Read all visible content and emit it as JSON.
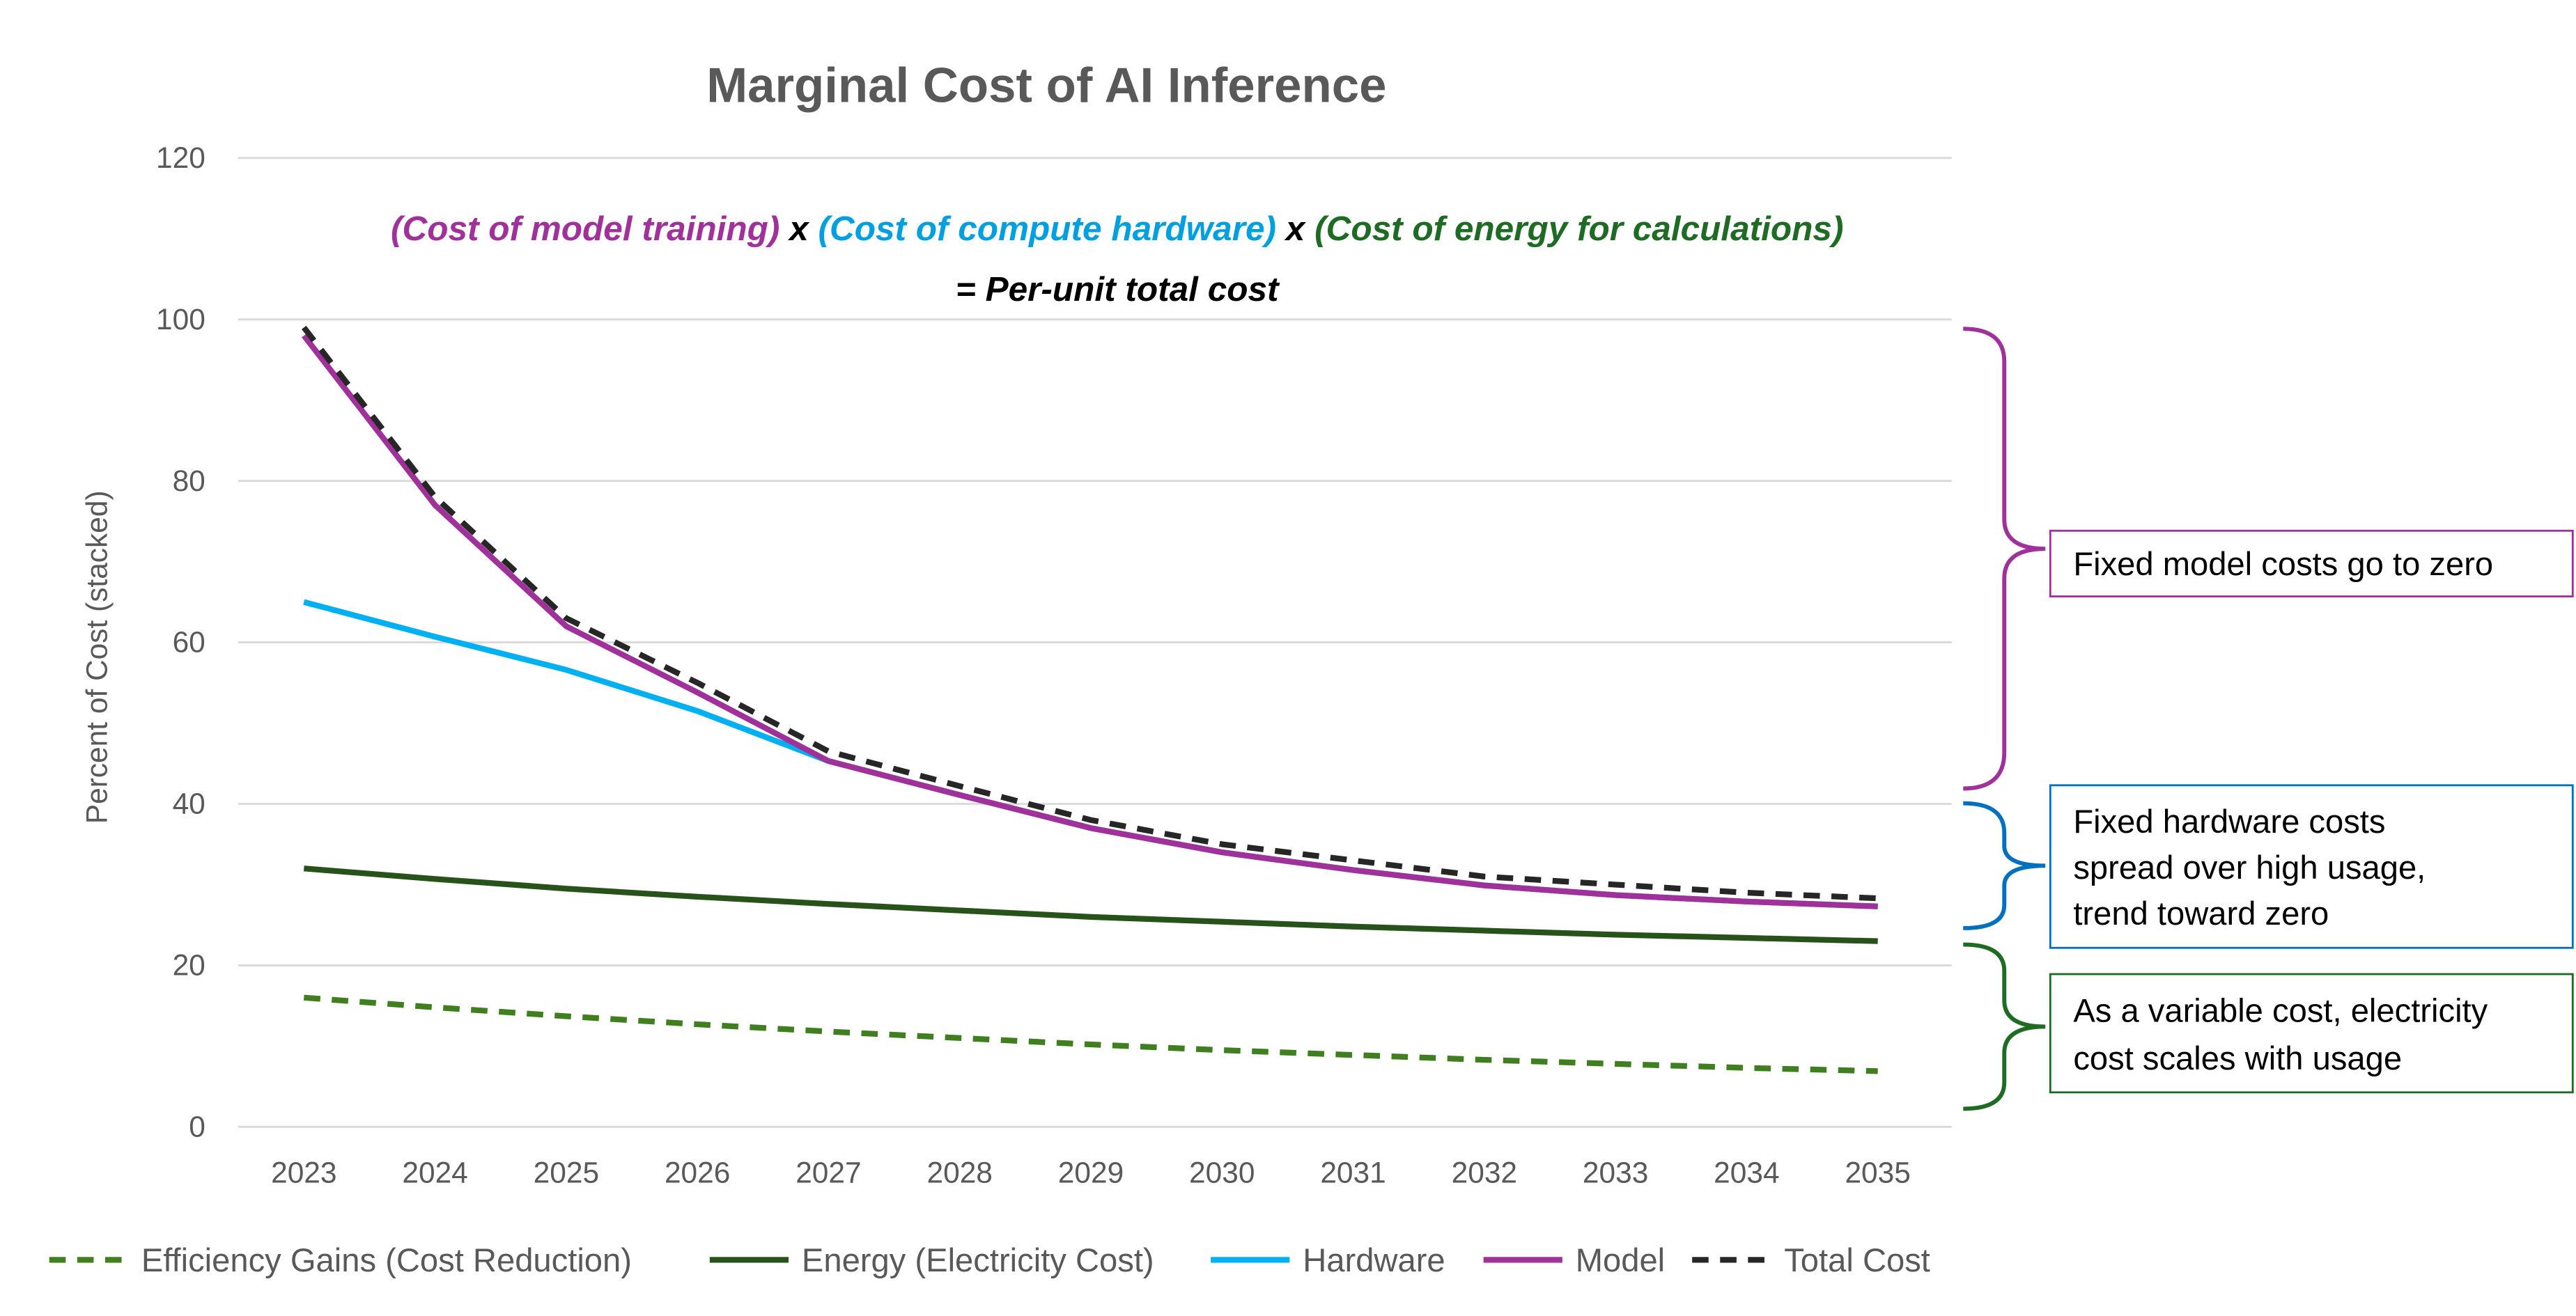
{
  "chart_data": {
    "type": "line",
    "title": "Marginal Cost of AI Inference",
    "ylabel": "Percent of Cost   (stacked)",
    "xlabel": "",
    "ylim": [
      0,
      120
    ],
    "yticks": [
      "0",
      "20",
      "40",
      "60",
      "80",
      "100",
      "120"
    ],
    "grid": true,
    "legend_position": "bottom",
    "categories": [
      "2023",
      "2024",
      "2025",
      "2026",
      "2027",
      "2028",
      "2029",
      "2030",
      "2031",
      "2032",
      "2033",
      "2034",
      "2035"
    ],
    "series": [
      {
        "name": "Efficiency Gains (Cost Reduction)",
        "color": "#3f7f1f",
        "dash": "dashed",
        "values": [
          16,
          14.8,
          13.7,
          12.7,
          11.8,
          11,
          10.2,
          9.5,
          8.9,
          8.3,
          7.8,
          7.3,
          6.9
        ]
      },
      {
        "name": "Energy (Electricity Cost)",
        "color": "#27521a",
        "dash": "solid",
        "values": [
          32,
          30.7,
          29.5,
          28.5,
          27.6,
          26.8,
          26,
          25.4,
          24.8,
          24.3,
          23.8,
          23.4,
          23
        ]
      },
      {
        "name": "Hardware",
        "color": "#00b0f0",
        "dash": "solid",
        "values": [
          65,
          60.7,
          56.6,
          51.5,
          45.3,
          41.1,
          37,
          34,
          31.8,
          29.9,
          28.7,
          27.9,
          27.3
        ]
      },
      {
        "name": "Model",
        "color": "#a0309a",
        "dash": "solid",
        "values": [
          98,
          77,
          62,
          53.8,
          45.3,
          41.1,
          37,
          34,
          31.8,
          29.9,
          28.7,
          27.9,
          27.3
        ]
      },
      {
        "name": "Total Cost",
        "color": "#262626",
        "dash": "dashed",
        "values": [
          99,
          78,
          63,
          55,
          46.5,
          42.2,
          38,
          35,
          33,
          31,
          30,
          29,
          28.3
        ]
      }
    ],
    "formula": {
      "model": "Cost of model training",
      "hardware": "Cost of compute hardware",
      "energy": "Cost of energy for calculations",
      "times": "x",
      "open": "(",
      "close": ")",
      "result": "= Per-unit total cost",
      "model_color": "#a0309a",
      "hardware_color": "#00a0e0",
      "energy_color": "#1e6b23"
    },
    "annotations": [
      {
        "text_lines": [
          "Fixed model costs go to zero"
        ],
        "color": "#a0309a"
      },
      {
        "text_lines": [
          "Fixed hardware costs",
          "spread over high usage,",
          "trend toward zero"
        ],
        "color": "#0070c0"
      },
      {
        "text_lines": [
          "As a variable cost, electricity",
          "cost scales with usage"
        ],
        "color": "#1e6b23"
      }
    ]
  }
}
